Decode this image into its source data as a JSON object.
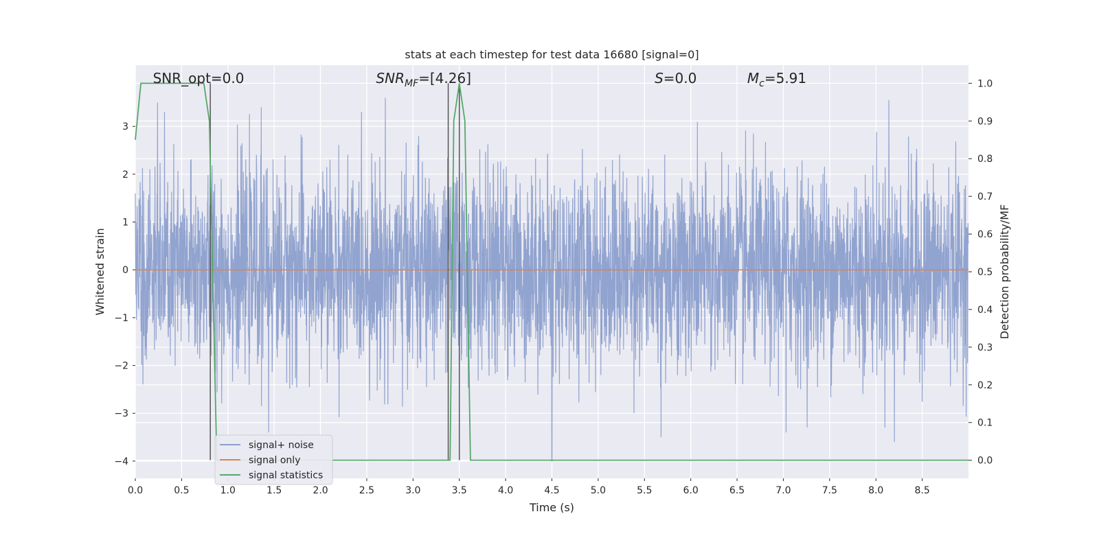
{
  "chart_data": {
    "type": "line",
    "title": "stats at each timestep for test data 16680 [signal=0]",
    "xlabel": "Time (s)",
    "ylabel": "Whitened strain",
    "y2label": "Detection probability/MF",
    "xlim": [
      0.0,
      9.0
    ],
    "ylim": [
      -4.36,
      4.28
    ],
    "y2lim": [
      -0.048,
      1.048
    ],
    "xticks": [
      0.0,
      0.5,
      1.0,
      1.5,
      2.0,
      2.5,
      3.0,
      3.5,
      4.0,
      4.5,
      5.0,
      5.5,
      6.0,
      6.5,
      7.0,
      7.5,
      8.0,
      8.5
    ],
    "xtick_labels": [
      "0.0",
      "0.5",
      "1.0",
      "1.5",
      "2.0",
      "2.5",
      "3.0",
      "3.5",
      "4.0",
      "4.5",
      "5.0",
      "5.5",
      "6.0",
      "6.5",
      "7.0",
      "7.5",
      "8.0",
      "8.5"
    ],
    "yticks": [
      -4,
      -3,
      -2,
      -1,
      0,
      1,
      2,
      3
    ],
    "ytick_labels": [
      "−4",
      "−3",
      "−2",
      "−1",
      "0",
      "1",
      "2",
      "3"
    ],
    "y2ticks": [
      0.0,
      0.1,
      0.2,
      0.3,
      0.4,
      0.5,
      0.6,
      0.7,
      0.8,
      0.9,
      1.0
    ],
    "y2tick_labels": [
      "0.0",
      "0.1",
      "0.2",
      "0.3",
      "0.4",
      "0.5",
      "0.6",
      "0.7",
      "0.8",
      "0.9",
      "1.0"
    ],
    "grid": true,
    "legend_position": "bottom-left",
    "series": [
      {
        "name": "signal+ noise",
        "color": "#8c9fcc",
        "axis": "left",
        "description_kind": "noise",
        "x_range": [
          0.0,
          9.0
        ],
        "typical_amplitude": 1.7,
        "peaks": [
          {
            "x": 0.24,
            "y": 3.5
          },
          {
            "x": 1.36,
            "y": 3.4
          },
          {
            "x": 2.7,
            "y": 3.6
          },
          {
            "x": 8.14,
            "y": 3.55
          },
          {
            "x": 4.5,
            "y": -4.0
          },
          {
            "x": 8.2,
            "y": -3.6
          },
          {
            "x": 5.68,
            "y": -3.5
          },
          {
            "x": 1.44,
            "y": -3.4
          },
          {
            "x": 7.03,
            "y": -3.4
          }
        ]
      },
      {
        "name": "signal only",
        "color": "#dd8452",
        "axis": "left",
        "x": [
          0.0,
          9.0
        ],
        "y": [
          0.0,
          0.0
        ]
      },
      {
        "name": "signal statistics",
        "color": "#55a868",
        "axis": "right",
        "x": [
          0.0,
          0.06,
          0.12,
          0.5,
          0.74,
          0.8,
          0.88,
          0.92,
          3.36,
          3.4,
          3.44,
          3.5,
          3.56,
          3.62,
          3.67,
          9.0
        ],
        "y": [
          0.85,
          1.0,
          1.0,
          1.0,
          1.0,
          0.9,
          0.0,
          0.0,
          0.0,
          0.0,
          0.9,
          1.0,
          0.9,
          0.0,
          0.0,
          0.0
        ]
      }
    ],
    "vertical_lines": [
      0.81,
      3.38,
      3.5
    ],
    "vertical_line_color": "#555555",
    "annotations": [
      {
        "text": "SNR_opt=0.0",
        "x": 0.19
      },
      {
        "text_main": "SNR",
        "text_sub": "MF",
        "text_rest": "=[4.26]",
        "x": 2.6
      },
      {
        "text_main": "S",
        "text_sub": "",
        "text_rest": "=0.0",
        "x": 5.61
      },
      {
        "text_main": "M",
        "text_sub": "c",
        "text_rest": "=5.91",
        "x": 6.61
      }
    ]
  }
}
